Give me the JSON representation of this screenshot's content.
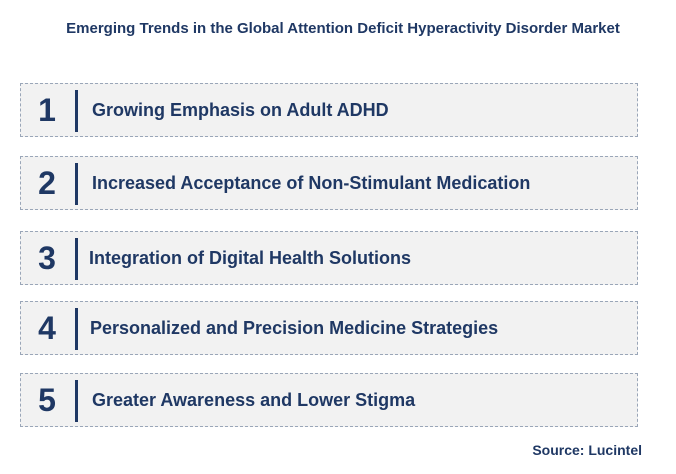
{
  "title": "Emerging Trends in the Global Attention Deficit Hyperactivity Disorder Market",
  "trends": [
    {
      "number": "1",
      "label": "Growing Emphasis on Adult ADHD"
    },
    {
      "number": "2",
      "label": "Increased Acceptance of Non-Stimulant Medication"
    },
    {
      "number": "3",
      "label": "Integration of Digital Health Solutions"
    },
    {
      "number": "4",
      "label": "Personalized and Precision Medicine Strategies"
    },
    {
      "number": "5",
      "label": "Greater Awareness and Lower Stigma"
    }
  ],
  "source": "Source: Lucintel",
  "colors": {
    "text": "#1f3864",
    "box_fill": "#f2f2f2",
    "box_border": "#9aa6b8"
  }
}
